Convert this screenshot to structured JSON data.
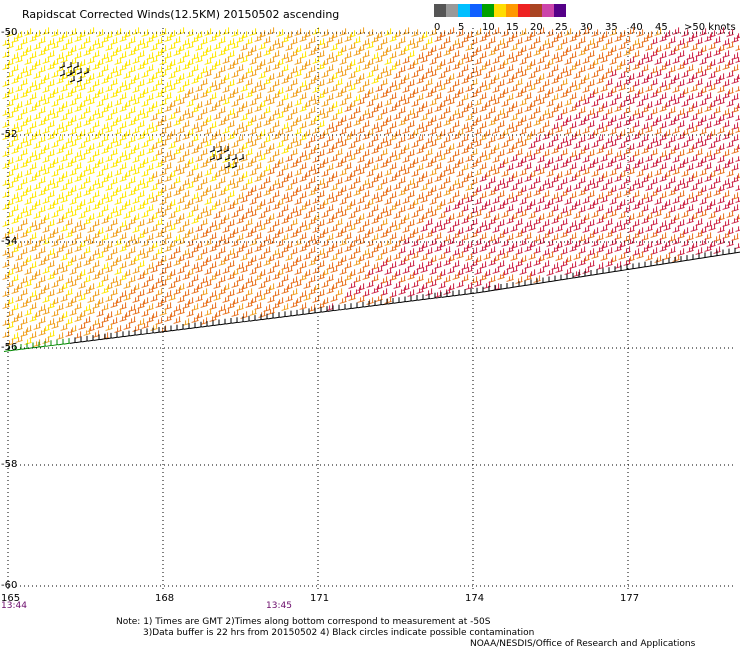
{
  "title": "Rapidscat Corrected Winds(12.5KM) 20150502 ascending",
  "legend": {
    "labels": [
      "0",
      "5",
      "10",
      "15",
      "20",
      "25",
      "30",
      "35",
      "40",
      "45",
      ">50 knots"
    ],
    "colors": [
      "#555555",
      "#999999",
      "#00bfff",
      "#1060ff",
      "#00a000",
      "#ffdd00",
      "#ff9900",
      "#ee2222",
      "#aa4422",
      "#cc44aa",
      "#550088"
    ]
  },
  "map": {
    "lat_labels": [
      "-50",
      "-52",
      "-54",
      "-56",
      "-58",
      "-60"
    ],
    "lon_labels": [
      "165",
      "168",
      "171",
      "174",
      "177"
    ],
    "time_labels": [
      "13:44",
      "13:45"
    ]
  },
  "notes": {
    "line1": "Note: 1) Times are GMT 2)Times along bottom correspond to measurement at -50S",
    "line2": "3)Data buffer is 22 hrs from 20150502 4) Black circles indicate possible contamination",
    "line3": "NOAA/NESDIS/Office of Research and Applications"
  },
  "colors": {
    "light": "#ffe600",
    "mid": "#f0a020",
    "orange": "#e8701c",
    "red": "#cc2244"
  }
}
